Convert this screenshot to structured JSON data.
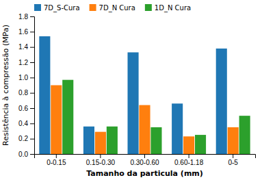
{
  "chart_data": {
    "type": "bar",
    "categories": [
      "0-0.15",
      "0.15-0.30",
      "0.30-0.60",
      "0.60-1.18",
      "0-5"
    ],
    "series": [
      {
        "name": "7D_S-Cura",
        "values": [
          1.54,
          0.36,
          1.33,
          0.66,
          1.38
        ]
      },
      {
        "name": "7D_N Cura",
        "values": [
          0.9,
          0.29,
          0.64,
          0.23,
          0.35
        ]
      },
      {
        "name": "1D_N Cura",
        "values": [
          0.97,
          0.36,
          0.35,
          0.25,
          0.5
        ]
      }
    ],
    "xlabel": "Tamanho da particula (mm)",
    "ylabel": "Resistência à compressão (MPa)",
    "ylim": [
      0,
      1.8
    ],
    "yticks": [
      {
        "value": 0,
        "label": "0.0"
      },
      0.2,
      0.4,
      0.6,
      0.8,
      {
        "value": 1.0,
        "label": "1.0"
      },
      1.2,
      1.4,
      1.6,
      1.8
    ],
    "legend": "upper left"
  }
}
